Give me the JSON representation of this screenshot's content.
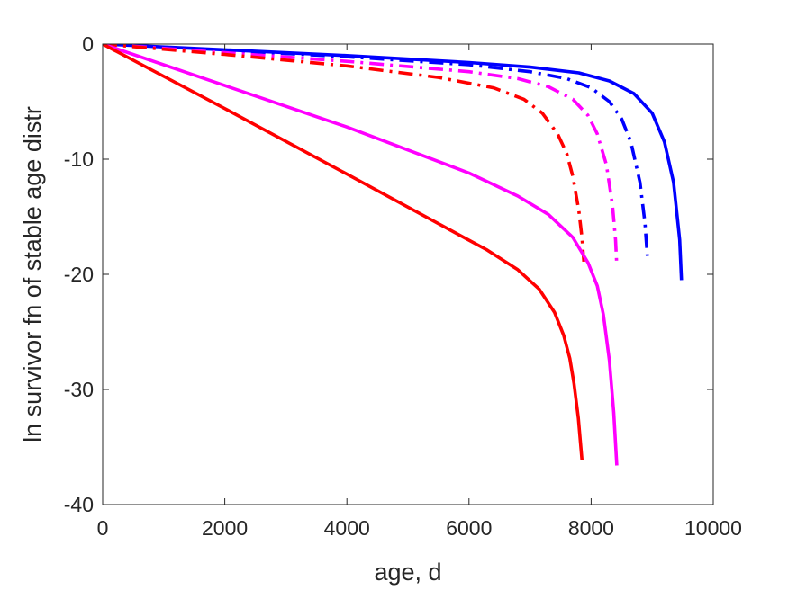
{
  "chart_data": {
    "type": "line",
    "xlabel": "age, d",
    "ylabel": "ln survivor fn of stable age distr",
    "xlim": [
      0,
      10000
    ],
    "ylim": [
      -40,
      0
    ],
    "xticks": [
      0,
      2000,
      4000,
      6000,
      8000,
      10000
    ],
    "yticks": [
      0,
      -10,
      -20,
      -30,
      -40
    ],
    "xtick_labels": [
      "0",
      "2000",
      "4000",
      "6000",
      "8000",
      "10000"
    ],
    "ytick_labels": [
      "0",
      "-10",
      "-20",
      "-30",
      "-40"
    ],
    "grid": false,
    "legend": "none",
    "series": [
      {
        "color": "#0000ff",
        "dash": "solid",
        "x": [
          0,
          2000,
          4000,
          6000,
          7000,
          7800,
          8300,
          8700,
          9000,
          9200,
          9350,
          9450,
          9480
        ],
        "y": [
          0,
          -0.5,
          -1.0,
          -1.6,
          -2.0,
          -2.5,
          -3.2,
          -4.3,
          -6.0,
          -8.5,
          -12.0,
          -17.0,
          -20.5
        ]
      },
      {
        "color": "#0000ff",
        "dash": "dashdot",
        "x": [
          0,
          2000,
          4000,
          6000,
          7000,
          7600,
          8000,
          8300,
          8500,
          8650,
          8800,
          8880,
          8920
        ],
        "y": [
          0,
          -0.55,
          -1.1,
          -1.8,
          -2.4,
          -3.0,
          -3.8,
          -5.0,
          -6.5,
          -8.5,
          -12.0,
          -15.5,
          -18.4
        ]
      },
      {
        "color": "#ff00ff",
        "dash": "dashdot",
        "x": [
          0,
          2000,
          4000,
          6000,
          6800,
          7300,
          7700,
          7950,
          8100,
          8250,
          8350,
          8400,
          8420
        ],
        "y": [
          0,
          -0.75,
          -1.5,
          -2.4,
          -3.0,
          -3.7,
          -4.8,
          -6.2,
          -7.8,
          -10.5,
          -14.0,
          -17.0,
          -19.3
        ]
      },
      {
        "color": "#ff0000",
        "dash": "dashdot",
        "x": [
          0,
          2000,
          4000,
          5500,
          6400,
          6900,
          7200,
          7450,
          7600,
          7700,
          7800,
          7850,
          7880
        ],
        "y": [
          0,
          -0.9,
          -1.9,
          -2.9,
          -3.8,
          -4.8,
          -6.0,
          -7.8,
          -9.5,
          -11.5,
          -14.5,
          -16.8,
          -18.9
        ]
      },
      {
        "color": "#ff00ff",
        "dash": "solid",
        "x": [
          0,
          2000,
          4000,
          6000,
          6800,
          7300,
          7700,
          7950,
          8100,
          8200,
          8300,
          8370,
          8420
        ],
        "y": [
          0,
          -3.6,
          -7.2,
          -11.2,
          -13.2,
          -14.8,
          -16.8,
          -19.0,
          -21.0,
          -23.5,
          -27.5,
          -32.0,
          -36.6
        ]
      },
      {
        "color": "#ff0000",
        "dash": "solid",
        "x": [
          0,
          2000,
          4000,
          5500,
          6300,
          6800,
          7150,
          7400,
          7550,
          7650,
          7720,
          7790,
          7850
        ],
        "y": [
          0,
          -5.6,
          -11.3,
          -15.6,
          -17.9,
          -19.6,
          -21.3,
          -23.3,
          -25.3,
          -27.3,
          -29.5,
          -32.5,
          -36.1
        ]
      }
    ]
  }
}
